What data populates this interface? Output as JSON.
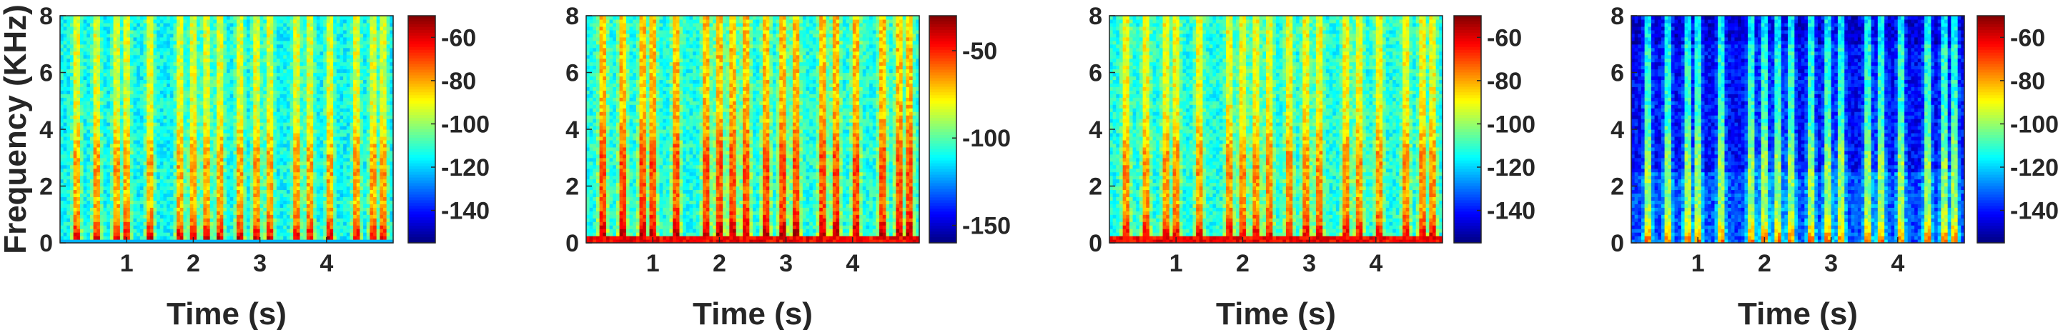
{
  "chart_data": [
    {
      "type": "heatmap",
      "title": "",
      "xlabel": "Time (s)",
      "ylabel": "Frequency (KHz)",
      "xlim": [
        0,
        5
      ],
      "ylim": [
        0,
        8
      ],
      "xticks": [
        1,
        2,
        3,
        4
      ],
      "yticks": [
        0,
        2,
        4,
        6,
        8
      ],
      "colorbar": {
        "ticks": [
          -60,
          -80,
          -100,
          -120,
          -140
        ],
        "range": [
          -155,
          -50
        ]
      },
      "colormap": "jet",
      "background_level": 0.38
    },
    {
      "type": "heatmap",
      "title": "",
      "xlabel": "Time (s)",
      "ylabel": "",
      "xlim": [
        0,
        5
      ],
      "ylim": [
        0,
        8
      ],
      "xticks": [
        1,
        2,
        3,
        4
      ],
      "yticks": [
        0,
        2,
        4,
        6,
        8
      ],
      "colorbar": {
        "ticks": [
          -50,
          -100,
          -150
        ],
        "range": [
          -160,
          -30
        ]
      },
      "colormap": "jet",
      "background_level": 0.4
    },
    {
      "type": "heatmap",
      "title": "",
      "xlabel": "Time (s)",
      "ylabel": "",
      "xlim": [
        0,
        5
      ],
      "ylim": [
        0,
        8
      ],
      "xticks": [
        1,
        2,
        3,
        4
      ],
      "yticks": [
        0,
        2,
        4,
        6,
        8
      ],
      "colorbar": {
        "ticks": [
          -60,
          -80,
          -100,
          -120,
          -140
        ],
        "range": [
          -155,
          -50
        ]
      },
      "colormap": "jet",
      "background_level": 0.4
    },
    {
      "type": "heatmap",
      "title": "",
      "xlabel": "Time (s)",
      "ylabel": "",
      "xlim": [
        0,
        5
      ],
      "ylim": [
        0,
        8
      ],
      "xticks": [
        1,
        2,
        3,
        4
      ],
      "yticks": [
        0,
        2,
        4,
        6,
        8
      ],
      "colorbar": {
        "ticks": [
          -60,
          -80,
          -100,
          -120,
          -140
        ],
        "range": [
          -155,
          -50
        ]
      },
      "colormap": "jet",
      "background_level": 0.2
    }
  ]
}
